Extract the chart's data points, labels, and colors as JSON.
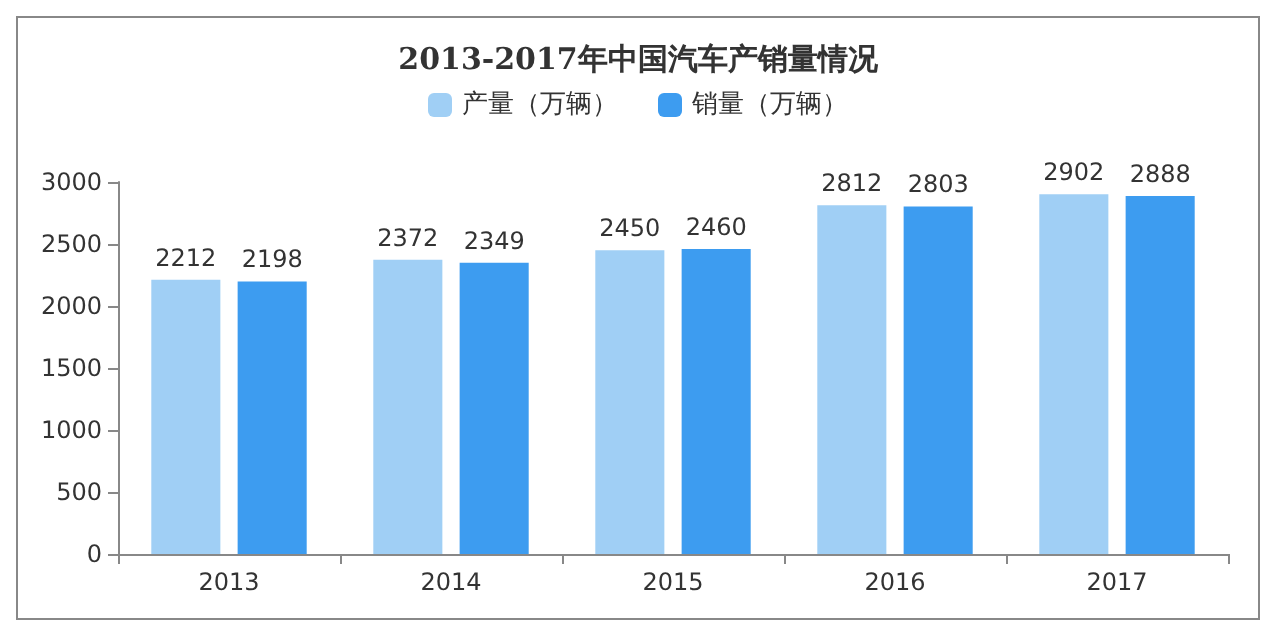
{
  "chart_data": {
    "type": "bar",
    "title": "2013-2017年中国汽车产销量情况",
    "categories": [
      "2013",
      "2014",
      "2015",
      "2016",
      "2017"
    ],
    "series": [
      {
        "name": "产量（万辆）",
        "color": "#a0cff5",
        "values": [
          2212,
          2372,
          2450,
          2812,
          2902
        ]
      },
      {
        "name": "销量（万辆）",
        "color": "#3d9cf0",
        "values": [
          2198,
          2349,
          2460,
          2803,
          2888
        ]
      }
    ],
    "ylim": [
      0,
      3000
    ],
    "yticks": [
      0,
      500,
      1000,
      1500,
      2000,
      2500,
      3000
    ],
    "grid": false,
    "legend": "top",
    "data_labels": true
  }
}
